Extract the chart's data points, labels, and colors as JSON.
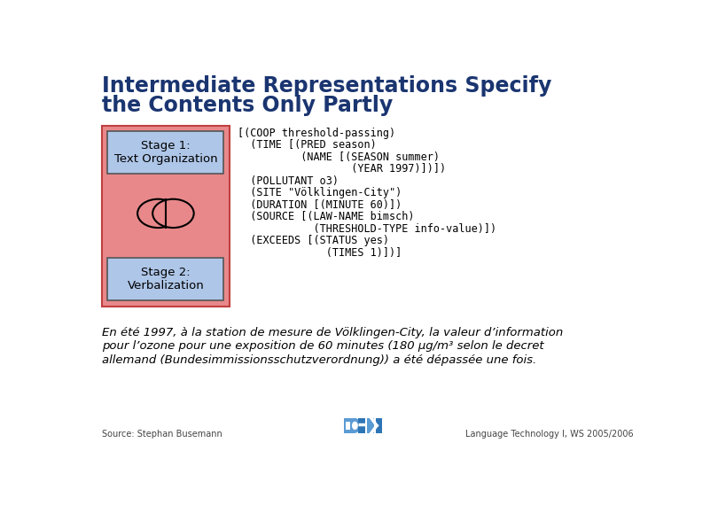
{
  "title_line1": "Intermediate Representations Specify",
  "title_line2": "the Contents Only Partly",
  "title_color": "#1a3570",
  "bg_color": "#ffffff",
  "stage1_label": "Stage 1:\nText Organization",
  "stage2_label": "Stage 2:\nVerbalization",
  "box_outer_color": "#e8888a",
  "box_inner_color": "#aec6e8",
  "code_lines": [
    "[(COOP threshold-passing)",
    "  (TIME [(PRED season)",
    "          (NAME [(SEASON summer)",
    "                  (YEAR 1997)])])",
    "  (POLLUTANT o3)",
    "  (SITE \"Völklingen-City\")",
    "  (DURATION [(MINUTE 60)])",
    "  (SOURCE [(LAW-NAME bimsch)",
    "            (THRESHOLD-TYPE info-value)])",
    "  (EXCEEDS [(STATUS yes)",
    "              (TIMES 1)])]"
  ],
  "italic_line1": "En été 1997, à la station de mesure de Völklingen-City, la valeur d’information",
  "italic_line2": "pour l’ozone pour une exposition de 60 minutes (180 μg/m³ selon le decret",
  "italic_line3": "allemand (Bundesimmissionsschutzverordnung)) a été dépassée une fois.",
  "source_text": "Source: Stephan Busemann",
  "footer_text": "Language Technology I, WS 2005/2006",
  "dfki_color1": "#5b9bd5",
  "dfki_color2": "#2e75b6"
}
